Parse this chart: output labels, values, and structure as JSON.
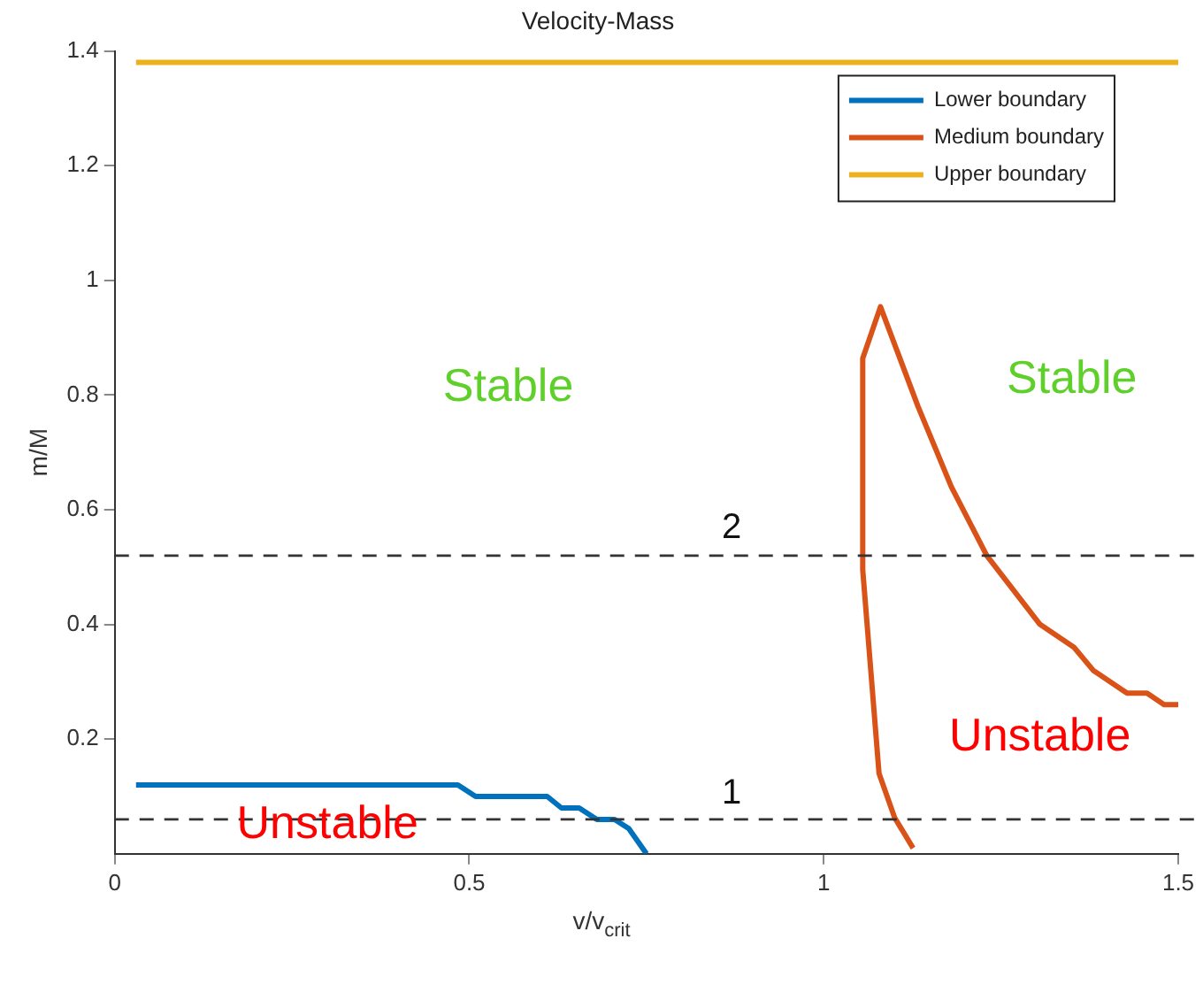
{
  "chart_data": {
    "type": "line",
    "title": "Velocity-Mass",
    "xlabel": "v/v$_{crit}$",
    "ylabel": "m/M",
    "xlim": [
      0,
      1.5
    ],
    "xticks": [
      0,
      0.5,
      1,
      1.5
    ],
    "ylim": [
      0,
      1.4
    ],
    "yticks": [
      0.2,
      0.4,
      0.6,
      0.8,
      1,
      1.2,
      1.4
    ],
    "grid": false,
    "legend": "top right",
    "marker": "none",
    "line_style": "solid",
    "series": [
      {
        "name": "Lower boundary",
        "color": "#0072bd",
        "x": [
          0.03,
          0.484,
          0.509,
          0.61,
          0.63,
          0.655,
          0.68,
          0.705,
          0.725,
          0.75
        ],
        "values": [
          0.12,
          0.12,
          0.1,
          0.1,
          0.08,
          0.08,
          0.06,
          0.06,
          0.044,
          0.0
        ]
      },
      {
        "name": "Medium boundary",
        "color": "#d95319",
        "x": [
          1.126,
          1.1,
          1.078,
          1.055,
          1.055,
          1.08,
          1.133,
          1.18,
          1.23,
          1.305,
          1.353,
          1.38,
          1.428,
          1.456,
          1.48,
          1.5
        ],
        "values": [
          0.01,
          0.063,
          0.14,
          0.495,
          0.864,
          0.954,
          0.78,
          0.64,
          0.52,
          0.4,
          0.36,
          0.32,
          0.28,
          0.28,
          0.26,
          0.26
        ]
      },
      {
        "name": "Upper boundary",
        "color": "#edb120",
        "x": [
          0.03,
          1.5
        ],
        "values": [
          1.38,
          1.38
        ]
      }
    ],
    "ref_lines": [
      {
        "axis": "y",
        "value": 0.06,
        "color": "#333333",
        "line_style": "dashed"
      },
      {
        "axis": "y",
        "value": 0.52,
        "color": "#333333",
        "line_style": "dashed"
      }
    ],
    "annotations": [
      "Stable",
      "Stable",
      "Unstable",
      "Unstable",
      "1",
      "2"
    ]
  }
}
